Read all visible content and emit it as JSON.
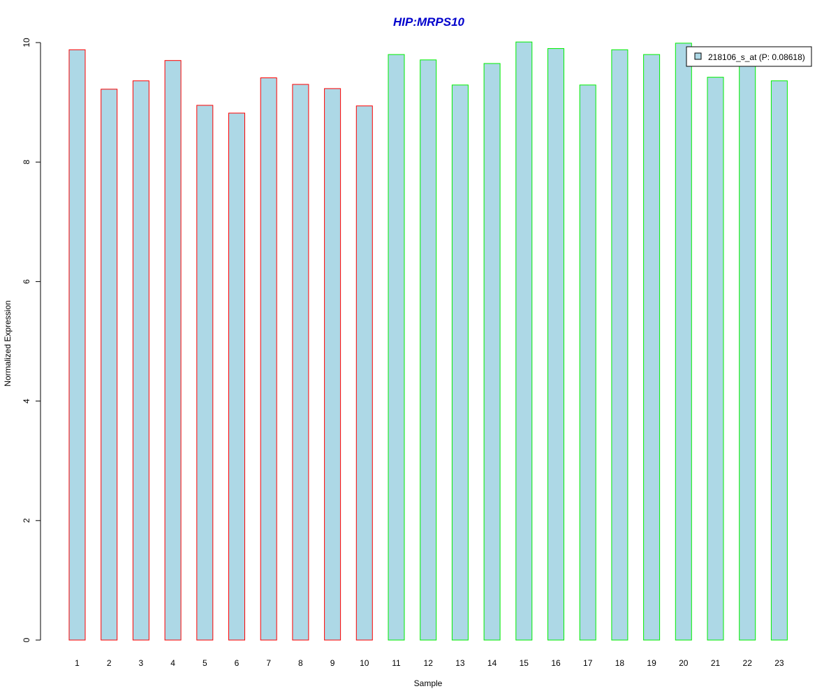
{
  "chart_data": {
    "type": "bar",
    "title": "HIP:MRPS10",
    "xlabel": "Sample",
    "ylabel": "Normalized Expression",
    "categories": [
      "1",
      "2",
      "3",
      "4",
      "5",
      "6",
      "7",
      "8",
      "9",
      "10",
      "11",
      "12",
      "13",
      "14",
      "15",
      "16",
      "17",
      "18",
      "19",
      "20",
      "21",
      "22",
      "23"
    ],
    "series": [
      {
        "name": "218106_s_at (P: 0.08618)",
        "values": [
          9.88,
          9.22,
          9.36,
          9.7,
          8.95,
          8.82,
          9.41,
          9.3,
          9.23,
          8.94,
          9.8,
          9.71,
          9.29,
          9.65,
          10.01,
          9.9,
          9.29,
          9.88,
          9.8,
          9.99,
          9.42,
          9.62,
          9.36
        ]
      }
    ],
    "group_edge_colors": [
      "#ff0000",
      "#ff0000",
      "#ff0000",
      "#ff0000",
      "#ff0000",
      "#ff0000",
      "#ff0000",
      "#ff0000",
      "#ff0000",
      "#ff0000",
      "#00ee00",
      "#00ee00",
      "#00ee00",
      "#00ee00",
      "#00ee00",
      "#00ee00",
      "#00ee00",
      "#00ee00",
      "#00ee00",
      "#00ee00",
      "#00ee00",
      "#00ee00",
      "#00ee00"
    ],
    "ylim": [
      0,
      10
    ],
    "yticks": [
      "0",
      "2",
      "4",
      "6",
      "8",
      "10"
    ],
    "grid": false,
    "legend_position": "top-right",
    "colors": {
      "bar_fill": "#add8e6",
      "title": "#0000cc",
      "axis": "#000000"
    }
  }
}
